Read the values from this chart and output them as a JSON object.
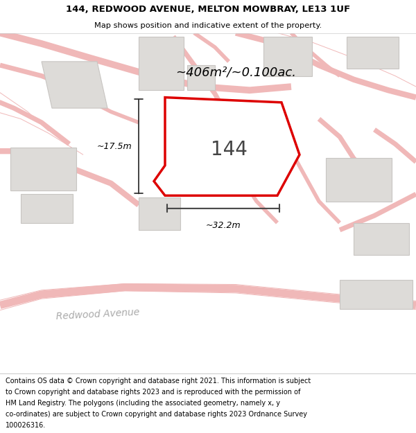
{
  "title_line1": "144, REDWOOD AVENUE, MELTON MOWBRAY, LE13 1UF",
  "title_line2": "Map shows position and indicative extent of the property.",
  "bg_color": "#ffffff",
  "map_bg_color": "#ffffff",
  "road_color": "#f0b8b8",
  "road_lw": 1.0,
  "building_color": "#dddbd8",
  "building_edge_color": "#c8c5c2",
  "subject_polygon_color": "#dd0000",
  "subject_polygon_fill": "#ffffff",
  "road_label": "Redwood Avenue",
  "area_label": "~406m²/~0.100ac.",
  "number_label": "144",
  "dim_width": "~32.2m",
  "dim_height": "~17.5m",
  "footer_lines": [
    "Contains OS data © Crown copyright and database right 2021. This information is subject",
    "to Crown copyright and database rights 2023 and is reproduced with the permission of",
    "HM Land Registry. The polygons (including the associated geometry, namely x, y",
    "co-ordinates) are subject to Crown copyright and database rights 2023 Ordnance Survey",
    "100026316."
  ]
}
